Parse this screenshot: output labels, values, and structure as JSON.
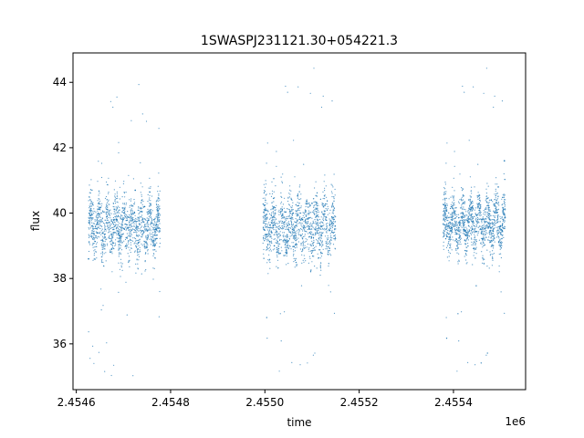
{
  "chart_data": {
    "type": "scatter",
    "title": "1SWASPJ231121.30+054221.3",
    "xlabel": "time",
    "ylabel": "flux",
    "x_offset_label": "1e6",
    "xlim": [
      2454593,
      2455553
    ],
    "ylim": [
      34.6,
      44.9
    ],
    "x_ticks": [
      2454600,
      2454800,
      2455000,
      2455200,
      2455400
    ],
    "x_tick_labels": [
      "2.4546",
      "2.4548",
      "2.4550",
      "2.4552",
      "2.4554"
    ],
    "y_ticks": [
      36,
      38,
      40,
      42,
      44
    ],
    "y_tick_labels": [
      "36",
      "38",
      "40",
      "42",
      "44"
    ],
    "grid": false,
    "point_color": "#1f77b4",
    "segments": [
      {
        "x_start": 2454626,
        "x_end": 2454778,
        "y_center": 39.6,
        "y_spread": 1.1,
        "y_min": 35.0,
        "y_max": 44.0
      },
      {
        "x_start": 2454996,
        "x_end": 2455150,
        "y_center": 39.6,
        "y_spread": 1.2,
        "y_min": 35.0,
        "y_max": 44.5
      },
      {
        "x_start": 2455378,
        "x_end": 2455510,
        "y_center": 39.7,
        "y_spread": 1.0,
        "y_min": 35.0,
        "y_max": 44.5
      }
    ],
    "points": [
      {
        "x": 2454626,
        "y": 38.6
      },
      {
        "x": 2454645,
        "y": 39.4
      },
      {
        "x": 2454665,
        "y": 39.9
      },
      {
        "x": 2454685,
        "y": 39.8
      },
      {
        "x": 2454705,
        "y": 39.0
      },
      {
        "x": 2454725,
        "y": 40.7
      },
      {
        "x": 2454745,
        "y": 40.2
      },
      {
        "x": 2454765,
        "y": 39.8
      },
      {
        "x": 2454998,
        "y": 39.5
      },
      {
        "x": 2455020,
        "y": 39.0
      },
      {
        "x": 2455040,
        "y": 39.7
      },
      {
        "x": 2455060,
        "y": 40.0
      },
      {
        "x": 2455080,
        "y": 39.8
      },
      {
        "x": 2455100,
        "y": 40.3
      },
      {
        "x": 2455120,
        "y": 39.6
      },
      {
        "x": 2455145,
        "y": 39.4
      },
      {
        "x": 2455380,
        "y": 39.3
      },
      {
        "x": 2455400,
        "y": 39.6
      },
      {
        "x": 2455420,
        "y": 40.0
      },
      {
        "x": 2455440,
        "y": 39.5
      },
      {
        "x": 2455460,
        "y": 39.8
      },
      {
        "x": 2455480,
        "y": 40.4
      },
      {
        "x": 2455495,
        "y": 40.8
      },
      {
        "x": 2455508,
        "y": 41.6
      }
    ]
  }
}
